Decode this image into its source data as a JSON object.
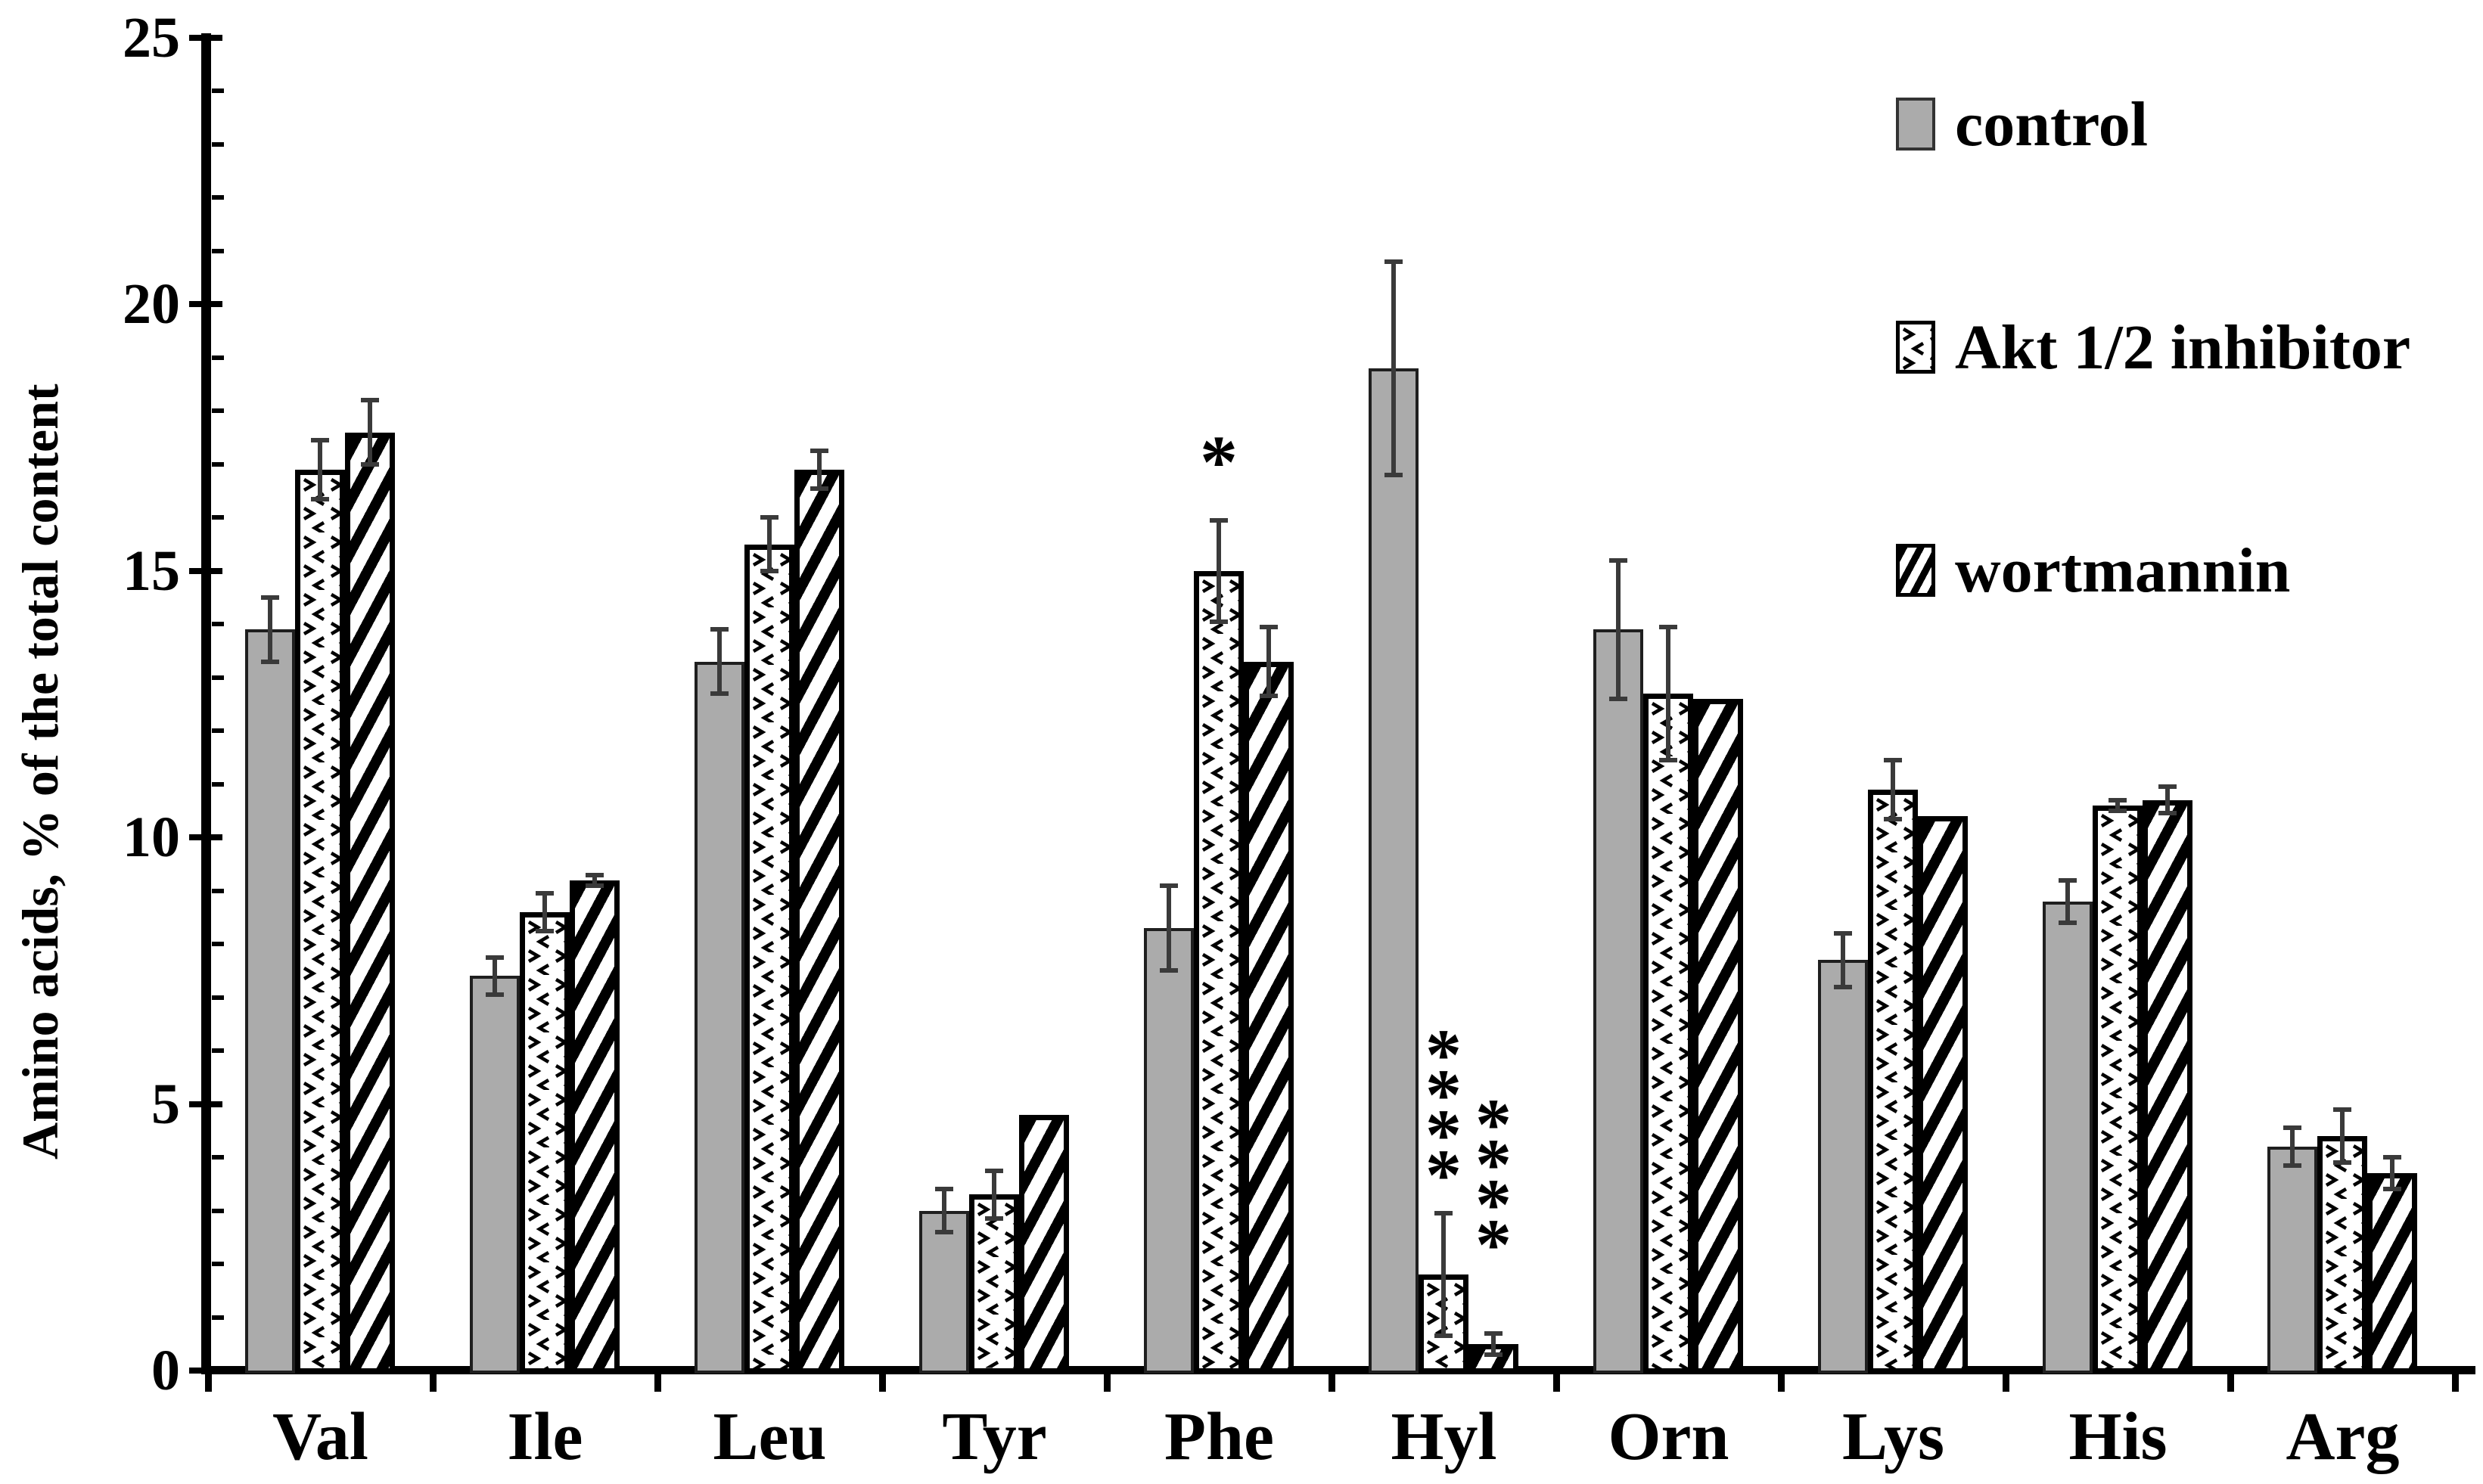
{
  "figure_type": "grouped bar chart with error bars",
  "axes": {
    "y_title": "Amino acids, % of the total content",
    "y_ticks": [
      0,
      5,
      10,
      15,
      20,
      25
    ],
    "y_minor_step": 1,
    "y_max": 25
  },
  "legend": {
    "position": "top-right",
    "items": [
      {
        "label": "control",
        "fill": "solid-gray"
      },
      {
        "label": "Akt 1/2 inhibitor",
        "fill": "chevron-dot-pattern"
      },
      {
        "label": "wortmannin",
        "fill": "diagonal-hatch"
      }
    ]
  },
  "chart_data": {
    "type": "bar",
    "title": "",
    "xlabel": "",
    "ylabel": "Amino acids, % of the total content",
    "ylim": [
      0,
      25
    ],
    "grid": false,
    "legend_position": "top-right",
    "categories": [
      "Val",
      "Ile",
      "Leu",
      "Tyr",
      "Phe",
      "Hyl",
      "Orn",
      "Lys",
      "His",
      "Arg"
    ],
    "series": [
      {
        "name": "control",
        "fill": "solid",
        "values": [
          13.9,
          7.4,
          13.3,
          3.0,
          8.3,
          18.8,
          13.9,
          7.7,
          8.8,
          4.2
        ],
        "errors": [
          0.6,
          0.35,
          0.6,
          0.4,
          0.8,
          2.0,
          1.3,
          0.5,
          0.4,
          0.35
        ]
      },
      {
        "name": "Akt 1/2 inhibitor",
        "fill": "chevron",
        "values": [
          16.9,
          8.6,
          15.5,
          3.3,
          15.0,
          1.8,
          12.7,
          10.9,
          10.6,
          4.4
        ],
        "errors": [
          0.55,
          0.35,
          0.5,
          0.45,
          0.95,
          1.15,
          1.25,
          0.55,
          0.1,
          0.5
        ]
      },
      {
        "name": "wortmannin",
        "fill": "hatch",
        "values": [
          17.6,
          9.2,
          16.9,
          4.8,
          13.3,
          0.5,
          12.6,
          10.4,
          10.7,
          3.7
        ],
        "errors": [
          0.6,
          0.1,
          0.35,
          0,
          0.65,
          0.2,
          0,
          0,
          0.25,
          0.3
        ]
      }
    ],
    "annotations": [
      {
        "text": "*",
        "category": "Phe",
        "series_index": 1,
        "stack": false,
        "top_value": 17.75
      },
      {
        "text": "****",
        "category": "Hyl",
        "series_index": 1,
        "stack": true,
        "top_value": 6.3
      },
      {
        "text": "****",
        "category": "Hyl",
        "series_index": 2,
        "stack": true,
        "top_value": 5.0
      }
    ]
  },
  "colors": {
    "control_fill": "#ababab",
    "pattern_ink": "#000000",
    "axis": "#000000",
    "error_bar": "#3a3a3a",
    "text": "#000000",
    "background": "#ffffff"
  }
}
